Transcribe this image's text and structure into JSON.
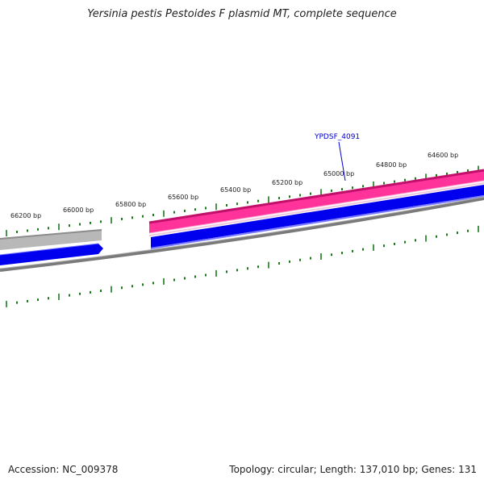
{
  "title": "Yersinia pestis Pestoides F plasmid MT, complete sequence",
  "footer": {
    "accession": "Accession: NC_009378",
    "summary": "Topology: circular; Length: 137,010 bp; Genes: 131"
  },
  "ruler": {
    "tick_labels": [
      "66200 bp",
      "66000 bp",
      "65800 bp",
      "65600 bp",
      "65400 bp",
      "65200 bp",
      "65000 bp",
      "64800 bp",
      "64600 bp"
    ]
  },
  "features": {
    "gene_label": "YPDSF_4091"
  },
  "colors": {
    "tick": "#1a7a1a",
    "pink_feature": "#ff3399",
    "pink_edge": "#c0106a",
    "blue_feature": "#0000ee",
    "gray_feature": "#b4b4b4",
    "backbone": "#7a7a7a",
    "label_link": "#0000cc"
  }
}
